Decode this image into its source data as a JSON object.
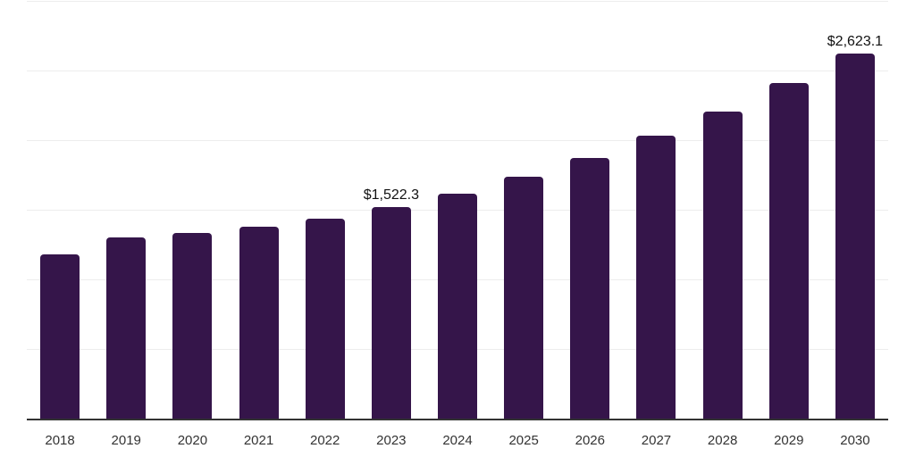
{
  "chart_data": {
    "type": "bar",
    "categories": [
      "2018",
      "2019",
      "2020",
      "2021",
      "2022",
      "2023",
      "2024",
      "2025",
      "2026",
      "2027",
      "2028",
      "2029",
      "2030"
    ],
    "values": [
      1180,
      1300,
      1335,
      1378,
      1436,
      1522.3,
      1615,
      1737,
      1870,
      2032,
      2207,
      2408,
      2623.1
    ],
    "value_labels": {
      "2023": "$1,522.3",
      "2030": "$2,623.1"
    },
    "ylim": [
      0,
      3000
    ],
    "gridline_step": 500,
    "grid": true,
    "legend": false,
    "xlabel": "",
    "ylabel": "",
    "colors": {
      "bar": "#35154a",
      "axis_line": "#333333",
      "gridline": "#ededed",
      "value_label_text": "#111111",
      "tick_label_text": "#333333",
      "background": "#ffffff"
    }
  }
}
